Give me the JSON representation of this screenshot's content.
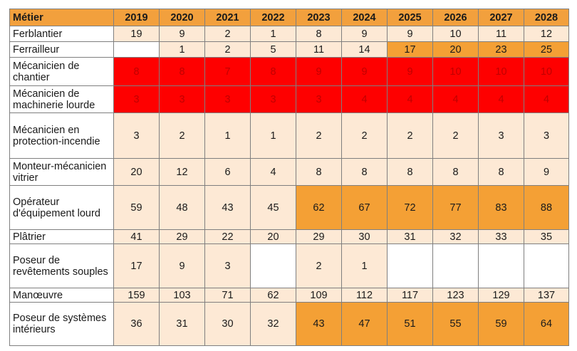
{
  "header": {
    "job": "Métier",
    "years": [
      "2019",
      "2020",
      "2021",
      "2022",
      "2023",
      "2024",
      "2025",
      "2026",
      "2027",
      "2028"
    ]
  },
  "legend_colors": {
    "light": "#fde9d5",
    "white": "#ffffff",
    "orange": "#f4a035",
    "red": "#fe0000"
  },
  "rows": [
    {
      "job": "Ferblantier",
      "values": [
        "19",
        "9",
        "2",
        "1",
        "8",
        "9",
        "9",
        "10",
        "11",
        "12"
      ],
      "fills": [
        "light",
        "light",
        "light",
        "light",
        "light",
        "light",
        "light",
        "light",
        "light",
        "light"
      ]
    },
    {
      "job": "Ferrailleur",
      "values": [
        "",
        "1",
        "2",
        "5",
        "11",
        "14",
        "17",
        "20",
        "23",
        "25"
      ],
      "fills": [
        "white",
        "light",
        "light",
        "light",
        "light",
        "light",
        "orange",
        "orange",
        "orange",
        "orange"
      ]
    },
    {
      "job": "Mécanicien de chantier",
      "values": [
        "8",
        "8",
        "7",
        "8",
        "9",
        "9",
        "9",
        "10",
        "10",
        "10"
      ],
      "fills": [
        "red",
        "red",
        "red",
        "red",
        "red",
        "red",
        "red",
        "red",
        "red",
        "red"
      ]
    },
    {
      "job": "Mécanicien de machinerie lourde",
      "values": [
        "3",
        "3",
        "3",
        "3",
        "3",
        "4",
        "4",
        "4",
        "4",
        "4"
      ],
      "fills": [
        "red",
        "red",
        "red",
        "red",
        "red",
        "red",
        "red",
        "red",
        "red",
        "red"
      ]
    },
    {
      "job": "Mécanicien en protection-incendie",
      "values": [
        "3",
        "2",
        "1",
        "1",
        "2",
        "2",
        "2",
        "2",
        "3",
        "3"
      ],
      "fills": [
        "light",
        "light",
        "light",
        "light",
        "light",
        "light",
        "light",
        "light",
        "light",
        "light"
      ]
    },
    {
      "job": "Monteur-mécanicien vitrier",
      "values": [
        "20",
        "12",
        "6",
        "4",
        "8",
        "8",
        "8",
        "8",
        "8",
        "9"
      ],
      "fills": [
        "light",
        "light",
        "light",
        "light",
        "light",
        "light",
        "light",
        "light",
        "light",
        "light"
      ]
    },
    {
      "job": "Opérateur d'équipement lourd",
      "values": [
        "59",
        "48",
        "43",
        "45",
        "62",
        "67",
        "72",
        "77",
        "83",
        "88"
      ],
      "fills": [
        "light",
        "light",
        "light",
        "light",
        "orange",
        "orange",
        "orange",
        "orange",
        "orange",
        "orange"
      ]
    },
    {
      "job": "Plâtrier",
      "values": [
        "41",
        "29",
        "22",
        "20",
        "29",
        "30",
        "31",
        "32",
        "33",
        "35"
      ],
      "fills": [
        "light",
        "light",
        "light",
        "light",
        "light",
        "light",
        "light",
        "light",
        "light",
        "light"
      ]
    },
    {
      "job": "Poseur de revêtements souples",
      "values": [
        "17",
        "9",
        "3",
        "",
        "2",
        "1",
        "",
        "",
        "",
        ""
      ],
      "fills": [
        "light",
        "light",
        "light",
        "white",
        "light",
        "light",
        "white",
        "white",
        "white",
        "white"
      ]
    },
    {
      "job": "Manœuvre",
      "values": [
        "159",
        "103",
        "71",
        "62",
        "109",
        "112",
        "117",
        "123",
        "129",
        "137"
      ],
      "fills": [
        "light",
        "light",
        "light",
        "light",
        "light",
        "light",
        "light",
        "light",
        "light",
        "light"
      ]
    },
    {
      "job": "Poseur de systèmes intérieurs",
      "values": [
        "36",
        "31",
        "30",
        "32",
        "43",
        "47",
        "51",
        "55",
        "59",
        "64"
      ],
      "fills": [
        "light",
        "light",
        "light",
        "light",
        "orange",
        "orange",
        "orange",
        "orange",
        "orange",
        "orange"
      ]
    }
  ]
}
